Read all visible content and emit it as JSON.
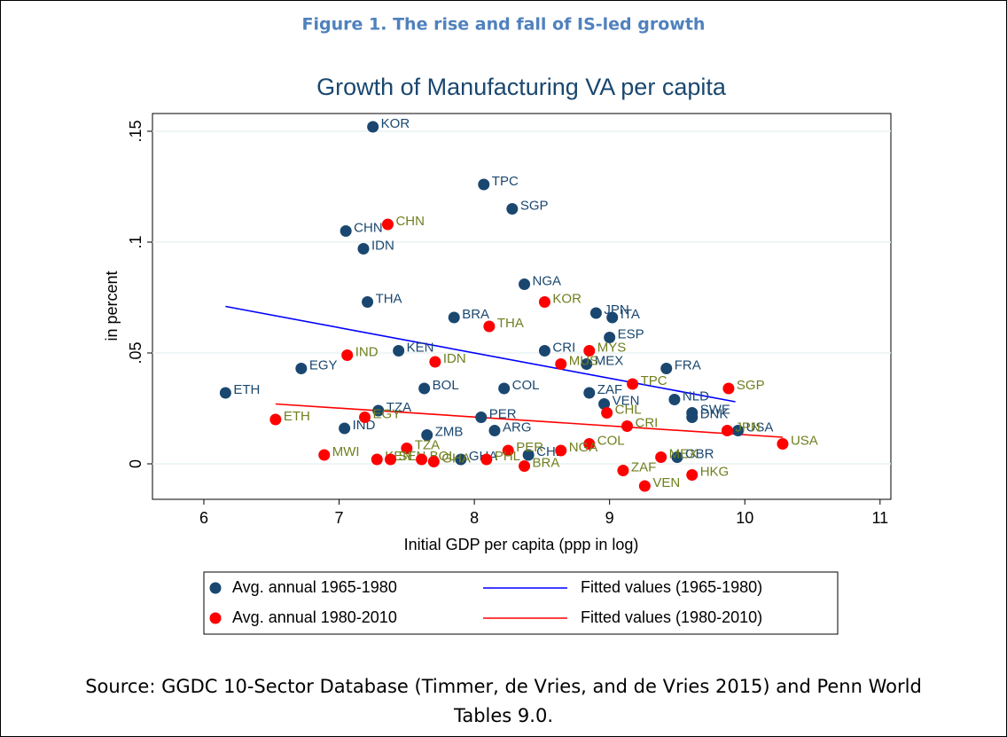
{
  "header": {
    "figure_title": "Figure 1. The rise and fall of IS-led growth",
    "source": [
      "Source: GGDC 10-Sector Database (Timmer, de Vries, and de Vries 2015) and Penn World",
      "Tables 9.0."
    ]
  },
  "chart_data": {
    "type": "scatter",
    "title": "Growth of Manufacturing VA per capita",
    "xlabel": "Initial GDP per capita (ppp in log)",
    "ylabel": "in percent",
    "xlim": [
      5.62,
      11.08
    ],
    "ylim": [
      -0.016,
      0.158
    ],
    "xticks": [
      6,
      7,
      8,
      9,
      10,
      11
    ],
    "yticks": [
      0,
      {
        "value": 0.05,
        "label": ".05"
      },
      {
        "value": 0.1,
        "label": ".1"
      },
      {
        "value": 0.15,
        "label": ".15"
      }
    ],
    "grid": true,
    "series": [
      {
        "name": "Avg. annual 1965-1980",
        "color": "#1a476f",
        "label_color": "#1a476f",
        "labels": [
          "KOR",
          "TPC",
          "SGP",
          "CHN",
          "IDN",
          "NGA",
          "THA",
          "JPN",
          "BRA",
          "ITA",
          "ESP",
          "CRI",
          "KEN",
          "MEX",
          "FRA",
          "EGY",
          "BOL",
          "COL",
          "ETH",
          "ZAF",
          "NLD",
          "VEN",
          "SWE",
          "DNK",
          "TZA",
          "PER",
          "IND",
          "ARG",
          "ZMB",
          "USA",
          "GBR",
          "GHA",
          "CHL"
        ],
        "x": [
          7.25,
          8.07,
          8.28,
          7.05,
          7.18,
          8.37,
          7.21,
          8.9,
          7.85,
          9.02,
          9.0,
          8.52,
          7.44,
          8.83,
          9.42,
          6.72,
          7.63,
          8.22,
          6.16,
          8.85,
          9.48,
          8.96,
          9.61,
          9.61,
          7.29,
          8.05,
          7.04,
          8.15,
          7.65,
          9.95,
          9.5,
          7.9,
          8.4
        ],
        "values": [
          0.152,
          0.126,
          0.115,
          0.105,
          0.097,
          0.081,
          0.073,
          0.068,
          0.066,
          0.066,
          0.057,
          0.051,
          0.051,
          0.045,
          0.043,
          0.043,
          0.034,
          0.034,
          0.032,
          0.032,
          0.029,
          0.027,
          0.023,
          0.021,
          0.024,
          0.021,
          0.016,
          0.015,
          0.013,
          0.015,
          0.003,
          0.002,
          0.004
        ]
      },
      {
        "name": "Avg. annual 1980-2010",
        "color": "#ff0000",
        "label_color": "#6f7f1e",
        "labels": [
          "CHN",
          "KOR",
          "THA",
          "MYS",
          "IND",
          "IDN",
          "MUS",
          "TPC",
          "SGP",
          "CHL",
          "EGY",
          "ETH",
          "CRI",
          "JPN",
          "USA",
          "COL",
          "NGA",
          "TZA",
          "PER",
          "MEX",
          "MWI",
          "KEN",
          "SEN",
          "BOL",
          "GHA",
          "PHL",
          "BRA",
          "ZAF",
          "HKG",
          "VEN"
        ],
        "x": [
          7.36,
          8.52,
          8.11,
          8.85,
          7.06,
          7.71,
          8.64,
          9.17,
          9.88,
          8.98,
          7.19,
          6.53,
          9.13,
          9.87,
          10.28,
          8.85,
          8.64,
          7.5,
          8.25,
          9.38,
          6.89,
          7.28,
          7.38,
          7.61,
          7.7,
          8.09,
          8.37,
          9.1,
          9.61,
          9.26
        ],
        "values": [
          0.108,
          0.073,
          0.062,
          0.051,
          0.049,
          0.046,
          0.045,
          0.036,
          0.034,
          0.023,
          0.021,
          0.02,
          0.017,
          0.015,
          0.009,
          0.009,
          0.006,
          0.007,
          0.006,
          0.003,
          0.004,
          0.002,
          0.002,
          0.002,
          0.001,
          0.002,
          -0.001,
          -0.003,
          -0.005,
          -0.01
        ]
      }
    ],
    "fits": [
      {
        "name": "Fitted values (1965-1980)",
        "color": "#0000ff",
        "x": [
          6.16,
          9.93
        ],
        "values": [
          0.071,
          0.028
        ]
      },
      {
        "name": "Fitted values (1980-2010)",
        "color": "#ff0000",
        "x": [
          6.53,
          10.28
        ],
        "values": [
          0.027,
          0.012
        ]
      }
    ]
  }
}
